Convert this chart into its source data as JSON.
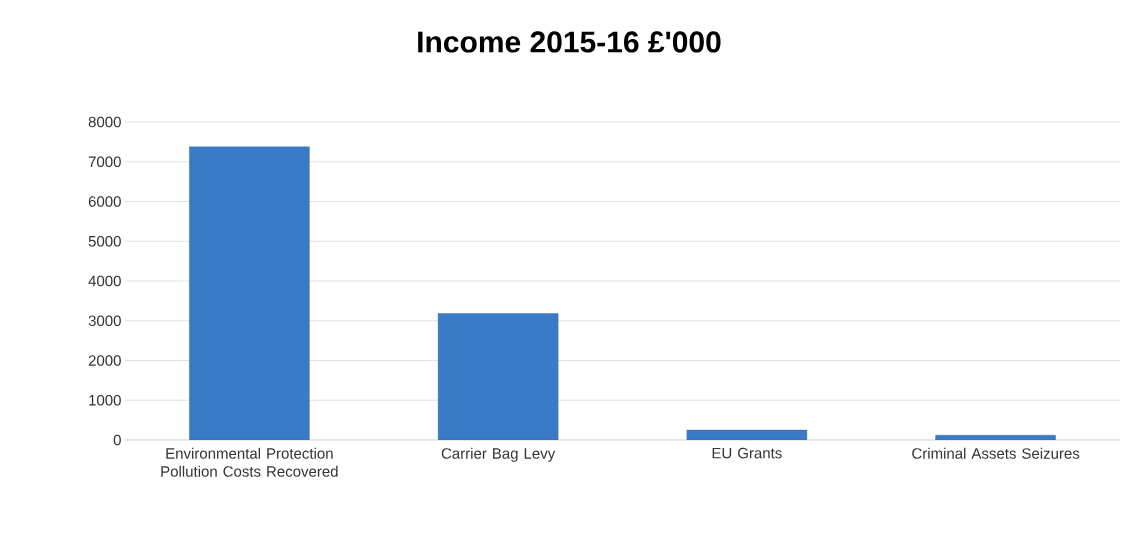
{
  "chart_data": {
    "type": "bar",
    "title": "Income 2015-16 £'000",
    "categories": [
      "Environmental Protection Pollution Costs Recovered",
      "Carrier Bag Levy",
      "EU Grants",
      "Criminal Assets Seizures"
    ],
    "values": [
      7380,
      3180,
      250,
      120
    ],
    "color": "#3a7bc8",
    "ylim": [
      0,
      8000
    ],
    "yticks": [
      0,
      1000,
      2000,
      3000,
      4000,
      5000,
      6000,
      7000,
      8000
    ],
    "grid": "y"
  }
}
